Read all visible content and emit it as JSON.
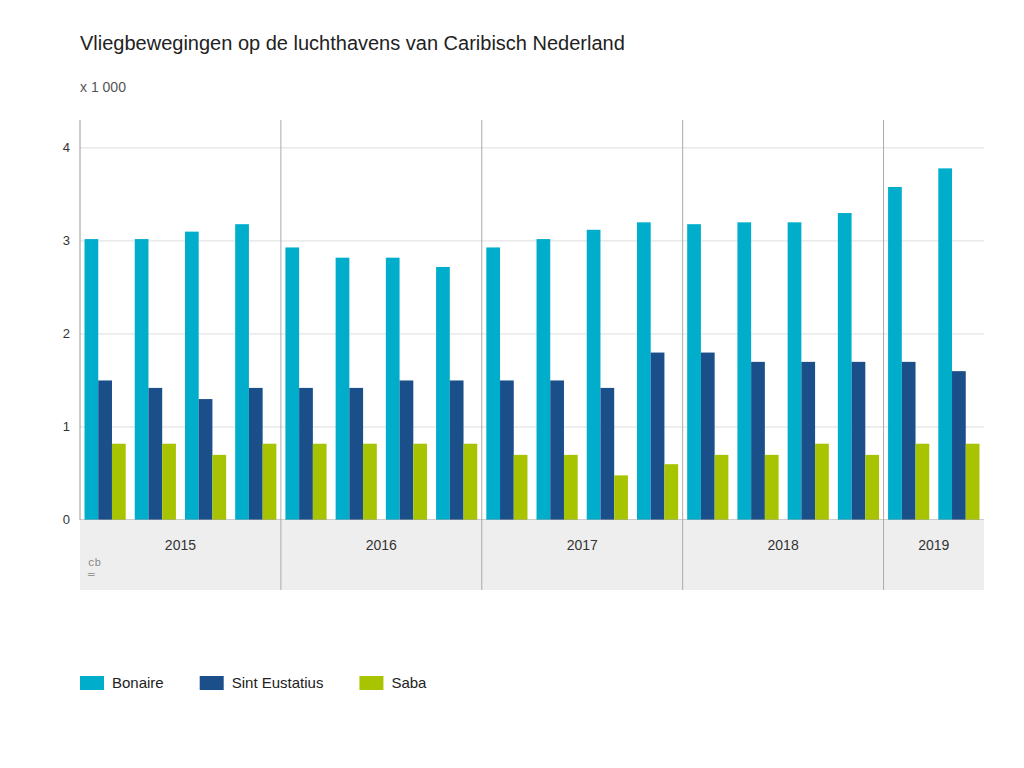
{
  "chart_data": {
    "type": "bar",
    "title": "Vliegbewegingen op de luchthavens van Caribisch Nederland",
    "ylabel": "x 1 000",
    "categories": [
      "2015",
      null,
      null,
      null,
      "2016",
      null,
      null,
      null,
      "2017",
      null,
      null,
      null,
      "2018",
      null,
      null,
      null,
      "2019",
      null
    ],
    "series": [
      {
        "name": "Bonaire",
        "color": "#00AECC",
        "values": [
          3.02,
          3.02,
          3.1,
          3.18,
          2.93,
          2.82,
          2.82,
          2.72,
          2.93,
          3.02,
          3.12,
          3.2,
          3.18,
          3.2,
          3.2,
          3.3,
          3.58,
          3.78
        ]
      },
      {
        "name": "Sint Eustatius",
        "color": "#1B4F8A",
        "values": [
          1.5,
          1.42,
          1.3,
          1.42,
          1.42,
          1.42,
          1.5,
          1.5,
          1.5,
          1.5,
          1.42,
          1.8,
          1.8,
          1.7,
          1.7,
          1.7,
          1.7,
          1.6
        ]
      },
      {
        "name": "Saba",
        "color": "#A8C400",
        "values": [
          0.82,
          0.82,
          0.7,
          0.82,
          0.82,
          0.82,
          0.82,
          0.82,
          0.7,
          0.7,
          0.48,
          0.6,
          0.7,
          0.7,
          0.82,
          0.7,
          0.82,
          0.82
        ]
      }
    ],
    "ylim": [
      0,
      4.3
    ],
    "yticks": [
      0,
      1,
      2,
      3,
      4
    ],
    "grid": true,
    "legend": "lower left",
    "annotations": [
      "cb\n═"
    ]
  }
}
